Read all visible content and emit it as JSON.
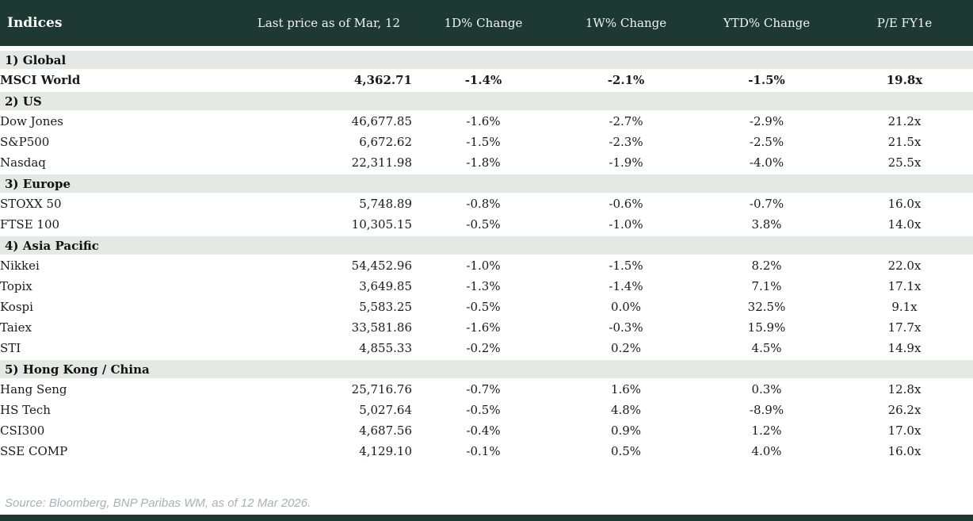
{
  "chart_data": {
    "type": "table",
    "title": "Indices",
    "columns": [
      "Indices",
      "Last price as of Mar, 12",
      "1D% Change",
      "1W% Change",
      "YTD% Change",
      "P/E FY1e"
    ],
    "sections": [
      {
        "label": "1) Global",
        "rows": [
          {
            "name": "MSCI World",
            "price": "4,362.71",
            "emphasis": true,
            "changes": [
              {
                "v": "-1.4%",
                "c": "neg"
              },
              {
                "v": "-2.1%",
                "c": "neg"
              },
              {
                "v": "-1.5%",
                "c": "neg"
              }
            ],
            "pe": "19.8x"
          }
        ]
      },
      {
        "label": "2) US",
        "rows": [
          {
            "name": "Dow Jones",
            "price": "46,677.85",
            "emphasis": false,
            "changes": [
              {
                "v": "-1.6%",
                "c": "neg"
              },
              {
                "v": "-2.7%",
                "c": "neg"
              },
              {
                "v": "-2.9%",
                "c": "neg"
              }
            ],
            "pe": "21.2x"
          },
          {
            "name": "S&P500",
            "price": "6,672.62",
            "emphasis": false,
            "changes": [
              {
                "v": "-1.5%",
                "c": "neg"
              },
              {
                "v": "-2.3%",
                "c": "neg"
              },
              {
                "v": "-2.5%",
                "c": "neg"
              }
            ],
            "pe": "21.5x"
          },
          {
            "name": "Nasdaq",
            "price": "22,311.98",
            "emphasis": false,
            "changes": [
              {
                "v": "-1.8%",
                "c": "neg"
              },
              {
                "v": "-1.9%",
                "c": "neg"
              },
              {
                "v": "-4.0%",
                "c": "neg"
              }
            ],
            "pe": "25.5x"
          }
        ]
      },
      {
        "label": "3) Europe",
        "rows": [
          {
            "name": "STOXX 50",
            "price": "5,748.89",
            "emphasis": false,
            "changes": [
              {
                "v": "-0.8%",
                "c": "neg"
              },
              {
                "v": "-0.6%",
                "c": "neg"
              },
              {
                "v": "-0.7%",
                "c": "neg"
              }
            ],
            "pe": "16.0x"
          },
          {
            "name": "FTSE 100",
            "price": "10,305.15",
            "emphasis": false,
            "changes": [
              {
                "v": "-0.5%",
                "c": "neg"
              },
              {
                "v": "-1.0%",
                "c": "neg"
              },
              {
                "v": "3.8%",
                "c": "pos"
              }
            ],
            "pe": "14.0x"
          }
        ]
      },
      {
        "label": "4) Asia Pacific",
        "rows": [
          {
            "name": "Nikkei",
            "price": "54,452.96",
            "emphasis": false,
            "changes": [
              {
                "v": "-1.0%",
                "c": "neg"
              },
              {
                "v": "-1.5%",
                "c": "neg"
              },
              {
                "v": "8.2%",
                "c": "pos"
              }
            ],
            "pe": "22.0x"
          },
          {
            "name": "Topix",
            "price": "3,649.85",
            "emphasis": false,
            "changes": [
              {
                "v": "-1.3%",
                "c": "neg"
              },
              {
                "v": "-1.4%",
                "c": "neg"
              },
              {
                "v": "7.1%",
                "c": "pos"
              }
            ],
            "pe": "17.1x"
          },
          {
            "name": "Kospi",
            "price": "5,583.25",
            "emphasis": false,
            "changes": [
              {
                "v": "-0.5%",
                "c": "neg"
              },
              {
                "v": "0.0%",
                "c": "neg"
              },
              {
                "v": "32.5%",
                "c": "pos"
              }
            ],
            "pe": "9.1x"
          },
          {
            "name": "Taiex",
            "price": "33,581.86",
            "emphasis": false,
            "changes": [
              {
                "v": "-1.6%",
                "c": "neg"
              },
              {
                "v": "-0.3%",
                "c": "neg"
              },
              {
                "v": "15.9%",
                "c": "pos"
              }
            ],
            "pe": "17.7x"
          },
          {
            "name": "STI",
            "price": "4,855.33",
            "emphasis": false,
            "changes": [
              {
                "v": "-0.2%",
                "c": "neg"
              },
              {
                "v": "0.2%",
                "c": "pos"
              },
              {
                "v": "4.5%",
                "c": "pos"
              }
            ],
            "pe": "14.9x"
          }
        ]
      },
      {
        "label": "5) Hong Kong / China",
        "rows": [
          {
            "name": "Hang Seng",
            "price": "25,716.76",
            "emphasis": false,
            "changes": [
              {
                "v": "-0.7%",
                "c": "neg"
              },
              {
                "v": "1.6%",
                "c": "pos"
              },
              {
                "v": "0.3%",
                "c": "pos"
              }
            ],
            "pe": "12.8x"
          },
          {
            "name": "HS Tech",
            "price": "5,027.64",
            "emphasis": false,
            "changes": [
              {
                "v": "-0.5%",
                "c": "neg"
              },
              {
                "v": "4.8%",
                "c": "pos"
              },
              {
                "v": "-8.9%",
                "c": "neg"
              }
            ],
            "pe": "26.2x"
          },
          {
            "name": "CSI300",
            "price": "4,687.56",
            "emphasis": false,
            "changes": [
              {
                "v": "-0.4%",
                "c": "neg"
              },
              {
                "v": "0.9%",
                "c": "pos"
              },
              {
                "v": "1.2%",
                "c": "pos"
              }
            ],
            "pe": "17.0x"
          },
          {
            "name": "SSE COMP",
            "price": "4,129.10",
            "emphasis": false,
            "changes": [
              {
                "v": "-0.1%",
                "c": "neg"
              },
              {
                "v": "0.5%",
                "c": "pos"
              },
              {
                "v": "4.0%",
                "c": "pos"
              }
            ],
            "pe": "16.0x"
          }
        ]
      }
    ],
    "source": "Source: Bloomberg, BNP Paribas WM, as of 12 Mar 2026.",
    "layout": {
      "legend": "none",
      "grid": "off",
      "column_alignment": [
        "left",
        "right",
        "center",
        "center",
        "center",
        "center"
      ]
    },
    "colors": {
      "header_background": "#1e3932",
      "section_background": "#e4e9e5",
      "negative_value": "#c00000",
      "positive_value": "#18913f",
      "body_text": "#1a1a1a",
      "source_text": "#a7b1b8"
    }
  }
}
